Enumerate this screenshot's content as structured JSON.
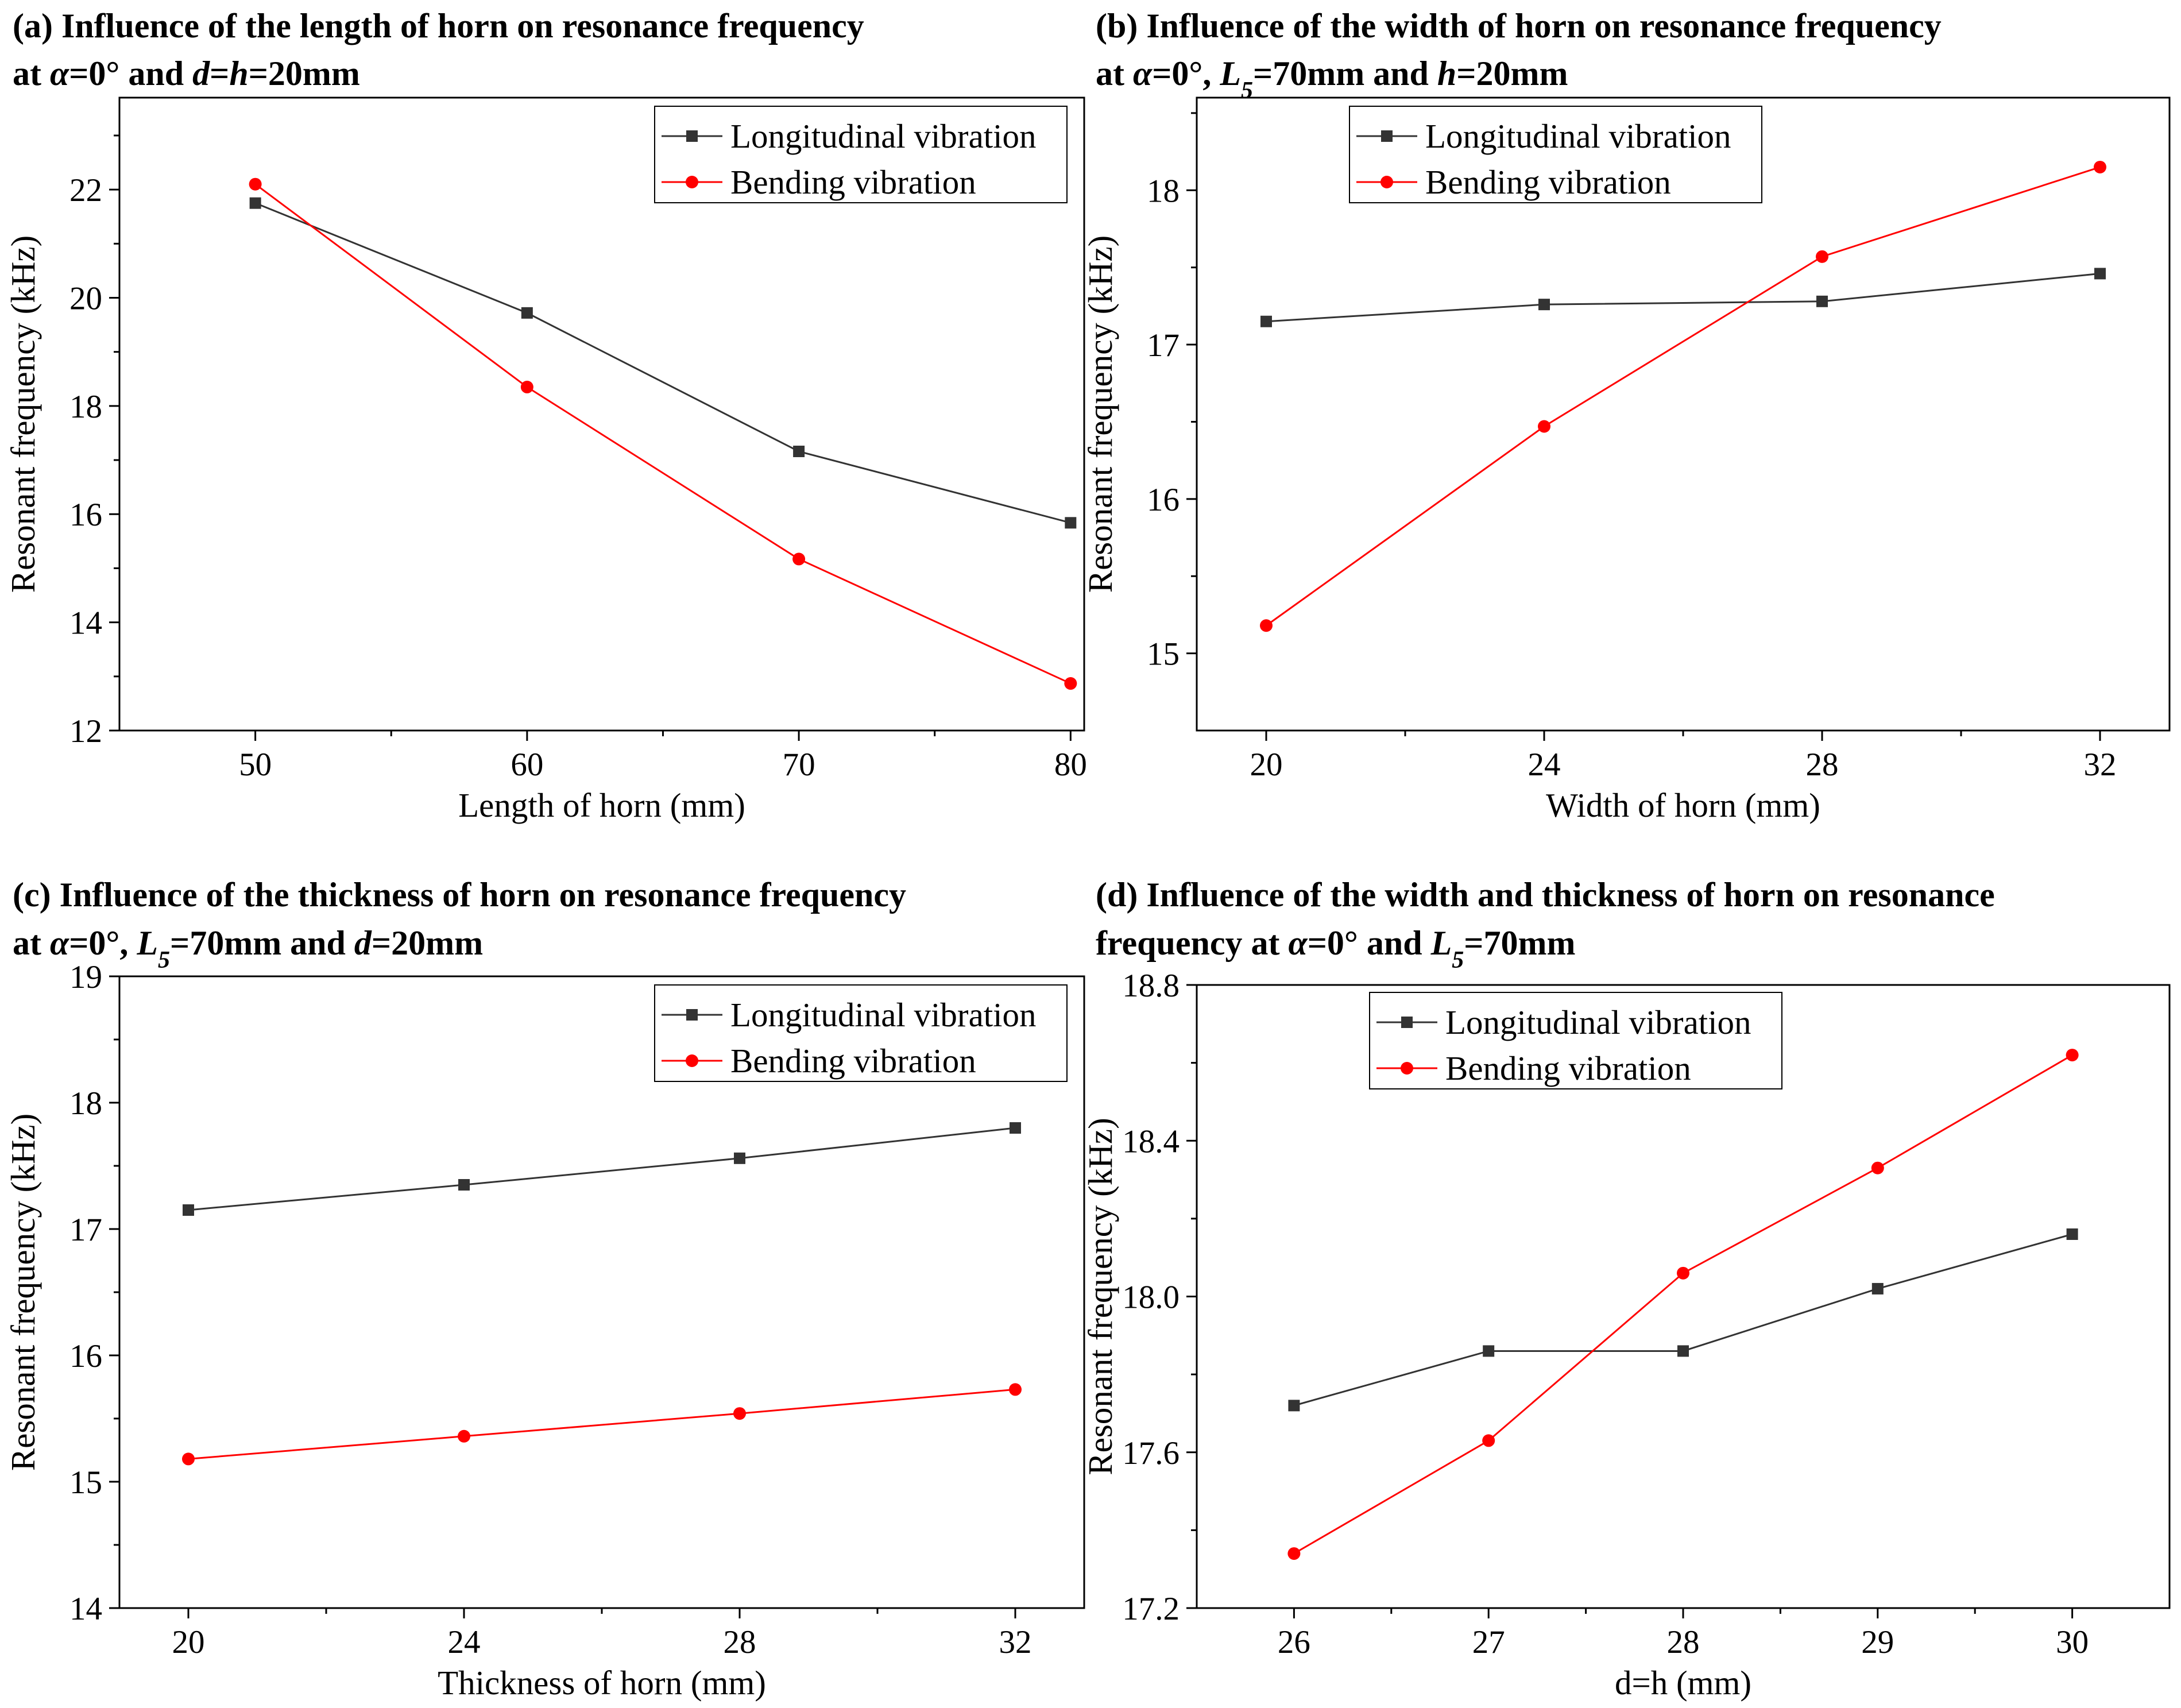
{
  "colors": {
    "longitudinal": "#333333",
    "bending": "#ff0000",
    "axis": "#000000"
  },
  "chart_data": [
    {
      "id": "a",
      "type": "line",
      "title_parts": [
        [
          "(a) Influence of the length of horn on resonance frequency",
          "n",
          "",
          false
        ],
        [
          "at ",
          "n",
          "",
          true
        ],
        [
          "α",
          "i",
          "",
          false
        ],
        [
          "=0° and ",
          "n",
          "",
          false
        ],
        [
          "d",
          "i",
          "",
          false
        ],
        [
          "=",
          "n",
          "",
          false
        ],
        [
          "h",
          "i",
          "",
          false
        ],
        [
          "=20mm",
          "n",
          "",
          false
        ]
      ],
      "xlabel": "Length of horn (mm)",
      "ylabel": "Resonant frequency (kHz)",
      "x": [
        50,
        60,
        70,
        80
      ],
      "xlim": [
        45,
        80.5
      ],
      "ylim": [
        12,
        23.7
      ],
      "xticks": [
        50,
        60,
        70,
        80
      ],
      "xtick_labels": [
        "50",
        "60",
        "70",
        "80"
      ],
      "yticks": [
        12,
        14,
        16,
        18,
        20,
        22
      ],
      "ytick_labels": [
        "12",
        "14",
        "16",
        "18",
        "20",
        "22"
      ],
      "series": [
        {
          "name": "Longitudinal vibration",
          "values": [
            21.75,
            19.72,
            17.16,
            15.84
          ]
        },
        {
          "name": "Bending vibration",
          "values": [
            22.1,
            18.35,
            15.17,
            12.87
          ]
        }
      ],
      "legend": "top-right"
    },
    {
      "id": "b",
      "type": "line",
      "title_parts": [
        [
          "(b) Influence of the width of horn on resonance frequency",
          "n",
          "",
          false
        ],
        [
          "at ",
          "n",
          "",
          true
        ],
        [
          "α",
          "i",
          "",
          false
        ],
        [
          "=0°, ",
          "n",
          "",
          false
        ],
        [
          "L",
          "i",
          "",
          false
        ],
        [
          "5",
          "i",
          "sub",
          false
        ],
        [
          "=70mm and ",
          "n",
          "",
          false
        ],
        [
          "h",
          "i",
          "",
          false
        ],
        [
          "=20mm",
          "n",
          "",
          false
        ]
      ],
      "xlabel": "Width of horn (mm)",
      "ylabel": "Resonant frequency (kHz)",
      "x": [
        20,
        24,
        28,
        32
      ],
      "xlim": [
        19,
        33
      ],
      "ylim": [
        14.5,
        18.6
      ],
      "xticks": [
        20,
        24,
        28,
        32
      ],
      "xtick_labels": [
        "20",
        "24",
        "28",
        "32"
      ],
      "yticks": [
        15,
        16,
        17,
        18
      ],
      "ytick_labels": [
        "15",
        "16",
        "17",
        "18"
      ],
      "series": [
        {
          "name": "Longitudinal vibration",
          "values": [
            17.15,
            17.26,
            17.28,
            17.46
          ]
        },
        {
          "name": "Bending vibration",
          "values": [
            15.18,
            16.47,
            17.57,
            18.15
          ]
        }
      ],
      "legend": "top-left"
    },
    {
      "id": "c",
      "type": "line",
      "title_parts": [
        [
          "(c) Influence of the thickness of horn on resonance frequency",
          "n",
          "",
          false
        ],
        [
          "at ",
          "n",
          "",
          true
        ],
        [
          "α",
          "i",
          "",
          false
        ],
        [
          "=0°, ",
          "n",
          "",
          false
        ],
        [
          "L",
          "i",
          "",
          false
        ],
        [
          "5",
          "i",
          "sub",
          false
        ],
        [
          "=70mm and ",
          "n",
          "",
          false
        ],
        [
          "d",
          "i",
          "",
          false
        ],
        [
          "=20mm",
          "n",
          "",
          false
        ]
      ],
      "xlabel": "Thickness of horn (mm)",
      "ylabel": "Resonant frequency (kHz)",
      "x": [
        20,
        24,
        28,
        32
      ],
      "xlim": [
        19,
        33
      ],
      "ylim": [
        14,
        19
      ],
      "xticks": [
        20,
        24,
        28,
        32
      ],
      "xtick_labels": [
        "20",
        "24",
        "28",
        "32"
      ],
      "yticks": [
        14,
        15,
        16,
        17,
        18,
        19
      ],
      "ytick_labels": [
        "14",
        "15",
        "16",
        "17",
        "18",
        "19"
      ],
      "series": [
        {
          "name": "Longitudinal vibration",
          "values": [
            17.15,
            17.35,
            17.56,
            17.8
          ]
        },
        {
          "name": "Bending vibration",
          "values": [
            15.18,
            15.36,
            15.54,
            15.73
          ]
        }
      ],
      "legend": "top-right"
    },
    {
      "id": "d",
      "type": "line",
      "title_parts": [
        [
          "(d) Influence of the width and thickness of horn on resonance",
          "n",
          "",
          false
        ],
        [
          "frequency at  ",
          "n",
          "",
          true
        ],
        [
          "α",
          "i",
          "",
          false
        ],
        [
          "=0° and ",
          "n",
          "",
          false
        ],
        [
          "L",
          "i",
          "",
          false
        ],
        [
          "5",
          "i",
          "sub",
          false
        ],
        [
          "=70mm",
          "n",
          "",
          false
        ]
      ],
      "xlabel": "d=h (mm)",
      "ylabel": "Resonant frequency (kHz)",
      "x": [
        26,
        27,
        28,
        29,
        30
      ],
      "xlim": [
        25.5,
        30.5
      ],
      "ylim": [
        17.2,
        18.8
      ],
      "xticks": [
        26,
        27,
        28,
        29,
        30
      ],
      "xtick_labels": [
        "26",
        "27",
        "28",
        "29",
        "30"
      ],
      "yticks": [
        17.2,
        17.6,
        18.0,
        18.4,
        18.8
      ],
      "ytick_labels": [
        "17.2",
        "17.6",
        "18.0",
        "18.4",
        "18.8"
      ],
      "series": [
        {
          "name": "Longitudinal vibration",
          "values": [
            17.72,
            17.86,
            17.86,
            18.02,
            18.16
          ]
        },
        {
          "name": "Bending vibration",
          "values": [
            17.34,
            17.63,
            18.06,
            18.33,
            18.62
          ]
        }
      ],
      "legend": "top-left"
    }
  ]
}
